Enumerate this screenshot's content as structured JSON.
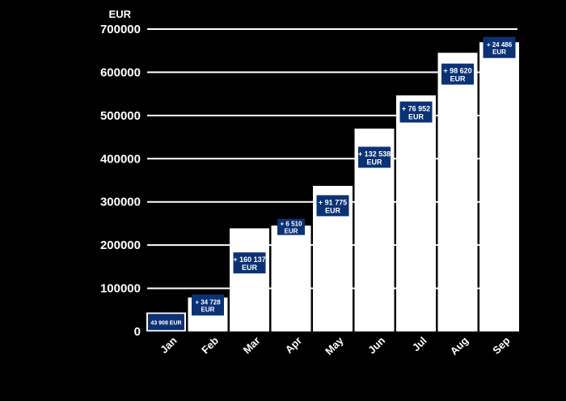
{
  "chart_data": {
    "type": "bar",
    "subtype": "waterfall",
    "unit_label": "EUR",
    "categories": [
      "Jan",
      "Feb",
      "Mar",
      "Apr",
      "May",
      "Jun",
      "Jul",
      "Aug",
      "Sep"
    ],
    "values": [
      43908,
      34728,
      160137,
      6510,
      91775,
      132538,
      76952,
      98620,
      24486
    ],
    "data_labels": [
      "43 908 EUR",
      "+ 34 728 EUR",
      "+ 160 137 EUR",
      "+ 6 510 EUR",
      "+ 91 775 EUR",
      "+ 132 538 EUR",
      "+ 76 952 EUR",
      "+ 98 620 EUR",
      "+ 24 486 EUR"
    ],
    "yticks": [
      0,
      100000,
      200000,
      300000,
      400000,
      500000,
      600000,
      700000
    ],
    "ytick_labels": [
      "0",
      "100000",
      "200000",
      "300000",
      "400000",
      "500000",
      "600000",
      "700000"
    ],
    "ylim": [
      0,
      700000
    ],
    "grid": true,
    "colors": {
      "background": "#000000",
      "bar": "#ffffff",
      "label_box": "#0b3275",
      "label_text": "#ffffff",
      "grid": "#ffffff",
      "text": "#ffffff"
    }
  }
}
